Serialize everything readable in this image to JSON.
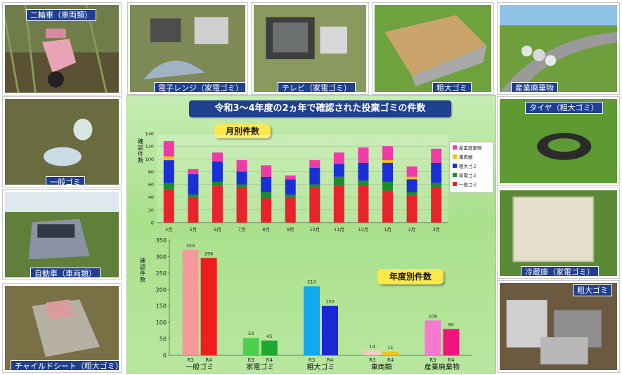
{
  "title": "令和3～4年度の2ヵ年で確認された投棄ゴミの件数",
  "photos": [
    {
      "id": "motorbike",
      "caption": "二輪車（車両類）"
    },
    {
      "id": "microwave",
      "caption": "電子レンジ（家電ゴミ）"
    },
    {
      "id": "tv",
      "caption": "テレビ（家電ゴミ）"
    },
    {
      "id": "sink",
      "caption": "粗大ゴミ"
    },
    {
      "id": "industrial",
      "caption": "産業廃棄物"
    },
    {
      "id": "general",
      "caption": "一般ゴミ"
    },
    {
      "id": "tire",
      "caption": "タイヤ（粗大ゴミ）"
    },
    {
      "id": "car",
      "caption": "自動車（車両類）"
    },
    {
      "id": "fridge",
      "caption": "冷蔵庫（家電ゴミ）"
    },
    {
      "id": "bulky",
      "caption": "粗大ゴミ"
    },
    {
      "id": "childseat",
      "caption": "チャイルドシート（粗大ゴミ）"
    }
  ],
  "chart_data": [
    {
      "type": "bar",
      "stacked": true,
      "badge": "月別件数",
      "ylabel": "確認件数",
      "ylim": [
        0,
        140
      ],
      "yticks": [
        0,
        20,
        40,
        60,
        80,
        100,
        120,
        140
      ],
      "grid": true,
      "legend_position": "right",
      "categories": [
        "4月",
        "5月",
        "6月",
        "7月",
        "8月",
        "9月",
        "10月",
        "11月",
        "12月",
        "1月",
        "2月",
        "3月"
      ],
      "series": [
        {
          "name": "一般ゴミ",
          "color": "#e8232b",
          "values": [
            52,
            40,
            58,
            54,
            38,
            40,
            56,
            58,
            58,
            50,
            42,
            56
          ]
        },
        {
          "name": "家電ゴミ",
          "color": "#1c8c2e",
          "values": [
            10,
            4,
            6,
            6,
            10,
            4,
            4,
            14,
            8,
            14,
            6,
            6
          ]
        },
        {
          "name": "粗大ゴミ",
          "color": "#1a2fd6",
          "values": [
            36,
            32,
            32,
            20,
            24,
            24,
            26,
            20,
            28,
            30,
            20,
            32
          ]
        },
        {
          "name": "車両類",
          "color": "#f5c400",
          "values": [
            6,
            0,
            0,
            0,
            0,
            0,
            0,
            0,
            0,
            4,
            4,
            0
          ]
        },
        {
          "name": "産業廃棄物",
          "color": "#f03aa8",
          "values": [
            24,
            8,
            14,
            18,
            18,
            6,
            12,
            18,
            24,
            22,
            16,
            22
          ]
        }
      ]
    },
    {
      "type": "bar",
      "badge": "年度別件数",
      "ylabel": "確認件数",
      "ylim": [
        0,
        350
      ],
      "yticks": [
        0,
        50,
        100,
        150,
        200,
        250,
        300,
        350
      ],
      "categories": [
        "一般ゴミ",
        "家電ゴミ",
        "粗大ゴミ",
        "車両類",
        "産業廃棄物"
      ],
      "bar_labels": [
        "R3",
        "R4"
      ],
      "R3": [
        320,
        53,
        210,
        14,
        106
      ],
      "R4": [
        296,
        45,
        150,
        11,
        80
      ],
      "colors_R3": [
        "#f49a9a",
        "#4fcf4f",
        "#12a8ee",
        "#f6c9c9",
        "#f77ad0"
      ],
      "colors_R4": [
        "#f01d1d",
        "#20a82e",
        "#1a28d8",
        "#f3c21a",
        "#f0147d"
      ]
    }
  ]
}
